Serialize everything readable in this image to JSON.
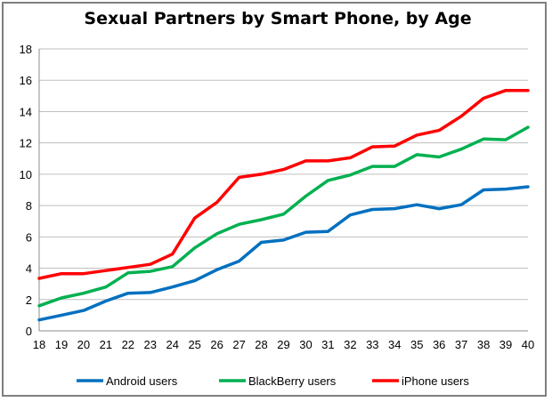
{
  "chart_data": {
    "type": "line",
    "title": "Sexual Partners by Smart Phone, by Age",
    "xlabel": "",
    "ylabel": "",
    "x": [
      18,
      19,
      20,
      21,
      22,
      23,
      24,
      25,
      26,
      27,
      28,
      29,
      30,
      31,
      32,
      33,
      34,
      35,
      36,
      37,
      38,
      39,
      40
    ],
    "ylim": [
      0,
      18
    ],
    "yticks": [
      0,
      2,
      4,
      6,
      8,
      10,
      12,
      14,
      16,
      18
    ],
    "grid": "horizontal",
    "legend_position": "bottom",
    "series": [
      {
        "name": "Android users",
        "color": "#0070c0",
        "values": [
          0.7,
          1.0,
          1.3,
          1.9,
          2.4,
          2.45,
          2.8,
          3.2,
          3.9,
          4.45,
          5.65,
          5.8,
          6.3,
          6.35,
          7.4,
          7.75,
          7.8,
          8.05,
          7.8,
          8.05,
          9.0,
          9.05,
          9.2
        ]
      },
      {
        "name": "BlackBerry users",
        "color": "#00b050",
        "values": [
          1.6,
          2.1,
          2.4,
          2.8,
          3.7,
          3.8,
          4.1,
          5.3,
          6.2,
          6.8,
          7.1,
          7.45,
          8.6,
          9.6,
          9.95,
          10.5,
          10.5,
          11.25,
          11.1,
          11.6,
          12.25,
          12.2,
          13.0
        ]
      },
      {
        "name": "iPhone users",
        "color": "#ff0000",
        "values": [
          3.35,
          3.65,
          3.65,
          3.85,
          4.05,
          4.25,
          4.9,
          7.2,
          8.2,
          9.8,
          10.0,
          10.3,
          10.85,
          10.85,
          11.05,
          11.75,
          11.8,
          12.5,
          12.8,
          13.7,
          14.85,
          15.35,
          15.35
        ]
      }
    ]
  }
}
